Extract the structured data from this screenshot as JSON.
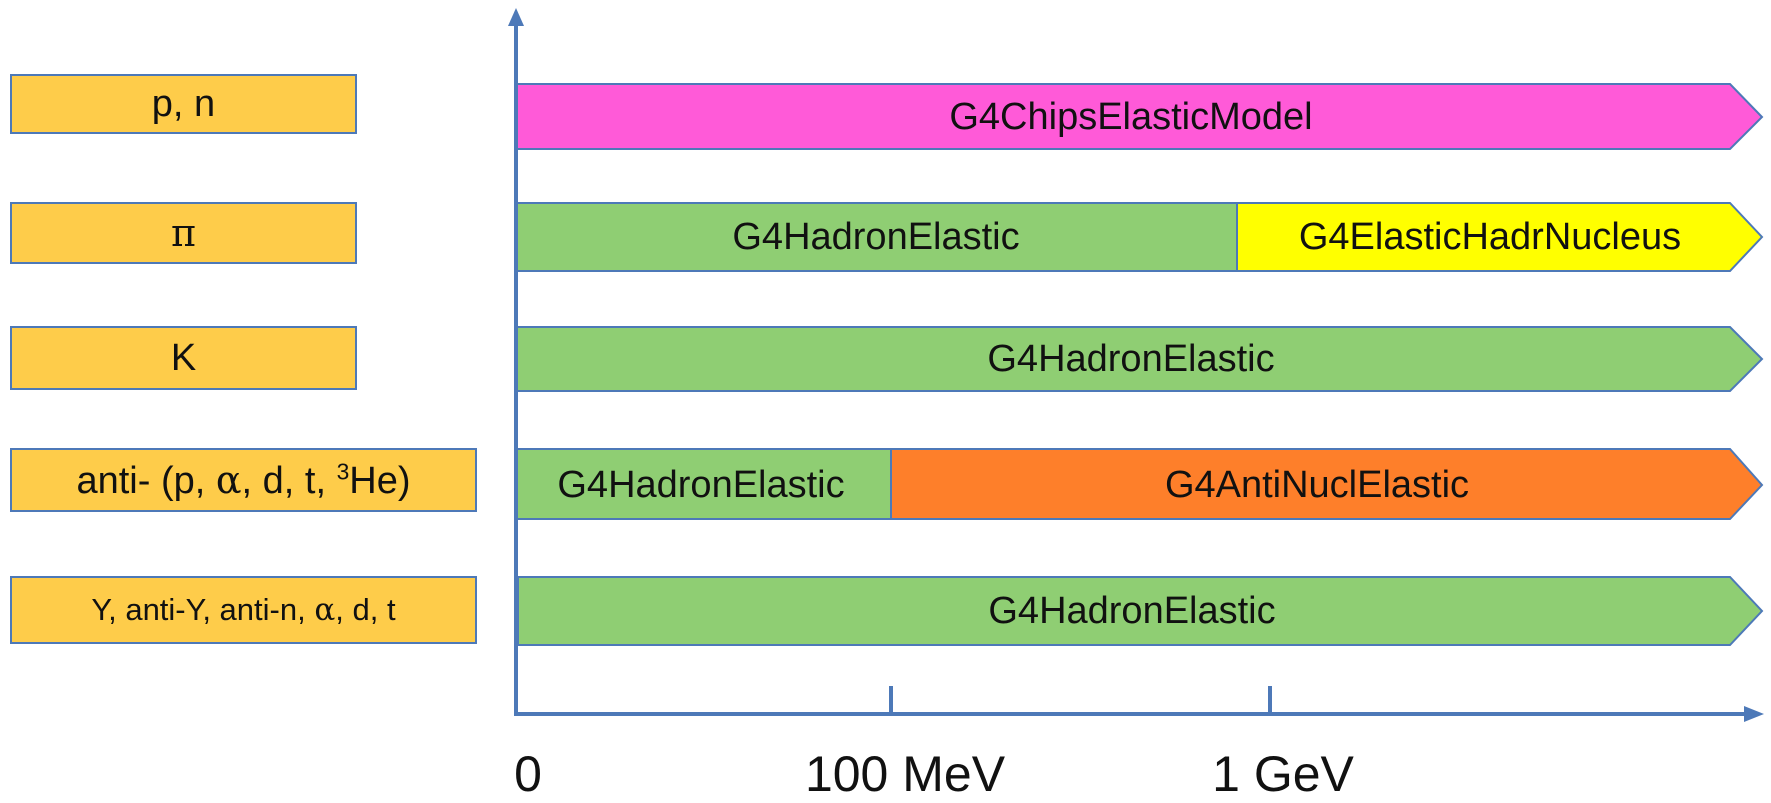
{
  "particles": [
    {
      "label": "p, n"
    },
    {
      "label": "π"
    },
    {
      "label": "K"
    },
    {
      "label_pre": "anti- (p, ",
      "alpha": "α",
      "label_mid": ", d, t, ",
      "sup": "3",
      "label_post": "He)"
    },
    {
      "label_pre": "Y, anti-Y, anti-n, ",
      "alpha": "α",
      "label_post": ", d, t"
    }
  ],
  "models": [
    {
      "segments": [
        {
          "label": "G4ChipsElasticModel",
          "color": "#ff5ad8"
        }
      ]
    },
    {
      "segments": [
        {
          "label": "G4HadronElastic",
          "color": "#8fce73"
        },
        {
          "label": "G4ElasticHadrNucleus",
          "color": "#ffff00"
        }
      ]
    },
    {
      "segments": [
        {
          "label": "G4HadronElastic",
          "color": "#8fce73"
        }
      ]
    },
    {
      "segments": [
        {
          "label": "G4HadronElastic",
          "color": "#8fce73"
        },
        {
          "label": "G4AntiNuclElastic",
          "color": "#fe7f2a"
        }
      ]
    },
    {
      "segments": [
        {
          "label": "G4HadronElastic",
          "color": "#8fce73"
        }
      ]
    }
  ],
  "axis": {
    "ticks": [
      {
        "label": "0"
      },
      {
        "label": "100 MeV"
      },
      {
        "label": "1 GeV"
      }
    ],
    "color": "#4d79b8"
  },
  "colors": {
    "particle_box": "#fecc4a",
    "outline": "#4d79b8"
  }
}
